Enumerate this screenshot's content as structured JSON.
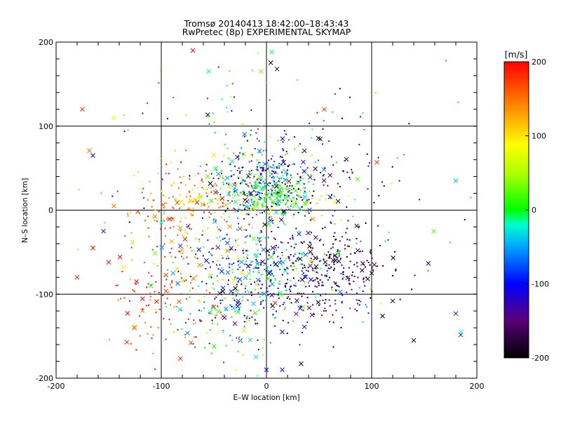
{
  "chart_data": {
    "type": "scatter",
    "title": "Tromsø 20140413 18:42:00–18:43:43",
    "subtitle": "RwPretec (8p) EXPERIMENTAL SKYMAP",
    "xlabel": "E–W location [km]",
    "ylabel": "N–S location [km]",
    "xlim": [
      -200,
      200
    ],
    "ylim": [
      -200,
      200
    ],
    "x_ticks": [
      -200,
      -100,
      0,
      100,
      200
    ],
    "y_ticks": [
      -200,
      -100,
      0,
      100,
      200
    ],
    "grid": true,
    "colorbar": {
      "label": "[m/s]",
      "range": [
        -200,
        200
      ],
      "ticks": [
        200,
        100,
        0,
        -100,
        -200
      ],
      "scale": "black→purple→blue→cyan→green→yellow→orange→red"
    },
    "markers": {
      "dots": "individual detections (small)",
      "crosses": "x markers"
    },
    "clusters": [
      {
        "cx": -5,
        "cy": 35,
        "sx": 22,
        "sy": 18,
        "vel": -80,
        "vsd": 60,
        "n": 260
      },
      {
        "cx": 5,
        "cy": 18,
        "sx": 25,
        "sy": 12,
        "vel": 20,
        "vsd": 40,
        "n": 260
      },
      {
        "cx": -70,
        "cy": 15,
        "sx": 25,
        "sy": 18,
        "vel": 140,
        "vsd": 50,
        "n": 120
      },
      {
        "cx": -85,
        "cy": -20,
        "sx": 30,
        "sy": 35,
        "vel": 150,
        "vsd": 40,
        "n": 110
      },
      {
        "cx": -10,
        "cy": -65,
        "sx": 35,
        "sy": 28,
        "vel": -60,
        "vsd": 80,
        "n": 320
      },
      {
        "cx": 55,
        "cy": -70,
        "sx": 35,
        "sy": 30,
        "vel": -170,
        "vsd": 35,
        "n": 260
      },
      {
        "cx": 40,
        "cy": 40,
        "sx": 40,
        "sy": 35,
        "vel": -150,
        "vsd": 50,
        "n": 120
      },
      {
        "cx": -100,
        "cy": -120,
        "sx": 25,
        "sy": 30,
        "vel": 170,
        "vsd": 30,
        "n": 90
      },
      {
        "cx": -30,
        "cy": -120,
        "sx": 25,
        "sy": 25,
        "vel": -40,
        "vsd": 90,
        "n": 110
      },
      {
        "cx": 30,
        "cy": -100,
        "sx": 40,
        "sy": 30,
        "vel": -120,
        "vsd": 70,
        "n": 90
      },
      {
        "cx": -20,
        "cy": 80,
        "sx": 40,
        "sy": 40,
        "vel": 0,
        "vsd": 120,
        "n": 70
      },
      {
        "cx": 0,
        "cy": 0,
        "sx": 110,
        "sy": 110,
        "vel": 0,
        "vsd": 130,
        "n": 140
      }
    ],
    "crosses": [
      {
        "x": -175,
        "y": 120,
        "v": 190
      },
      {
        "x": -145,
        "y": 110,
        "v": 80
      },
      {
        "x": -70,
        "y": 190,
        "v": 200
      },
      {
        "x": -55,
        "y": 165,
        "v": -20
      },
      {
        "x": 5,
        "y": 188,
        "v": -10
      },
      {
        "x": 10,
        "y": 168,
        "v": -190
      },
      {
        "x": -5,
        "y": 165,
        "v": 40
      },
      {
        "x": 55,
        "y": 120,
        "v": 180
      },
      {
        "x": -180,
        "y": -80,
        "v": 190
      },
      {
        "x": -165,
        "y": -45,
        "v": 200
      },
      {
        "x": -150,
        "y": -62,
        "v": 190
      },
      {
        "x": -145,
        "y": 5,
        "v": 150
      },
      {
        "x": -155,
        "y": -25,
        "v": -110
      },
      {
        "x": -165,
        "y": 65,
        "v": -110
      },
      {
        "x": -110,
        "y": -90,
        "v": 0
      },
      {
        "x": 185,
        "y": -145,
        "v": -20
      },
      {
        "x": 180,
        "y": -123,
        "v": -150
      },
      {
        "x": 180,
        "y": 35,
        "v": -40
      },
      {
        "x": 140,
        "y": -155,
        "v": -190
      },
      {
        "x": 105,
        "y": 57,
        "v": 180
      },
      {
        "x": 100,
        "y": -75,
        "v": -190
      },
      {
        "x": 120,
        "y": -108,
        "v": -190
      },
      {
        "x": 15,
        "y": -145,
        "v": -130
      },
      {
        "x": 15,
        "y": -190,
        "v": -110
      },
      {
        "x": 0,
        "y": -190,
        "v": -110
      },
      {
        "x": -10,
        "y": -175,
        "v": -30
      },
      {
        "x": -40,
        "y": -128,
        "v": -120
      },
      {
        "x": -30,
        "y": -135,
        "v": -150
      },
      {
        "x": -50,
        "y": -115,
        "v": 170
      },
      {
        "x": 35,
        "y": -115,
        "v": 40
      }
    ]
  }
}
